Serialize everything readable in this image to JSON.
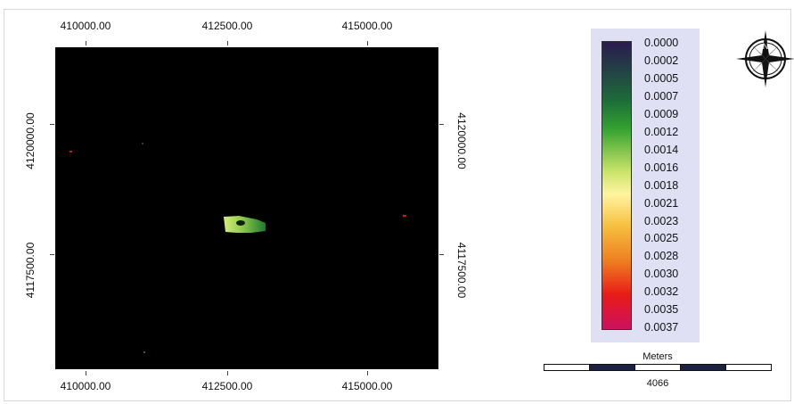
{
  "map": {
    "x_ticks_top": [
      "410000.00",
      "412500.00",
      "415000.00"
    ],
    "x_ticks_bottom": [
      "410000.00",
      "412500.00",
      "415000.00"
    ],
    "y_ticks_left": [
      "4120000.00",
      "4117500.00"
    ],
    "y_ticks_right": [
      "4120000.00",
      "4117500.00"
    ],
    "background_color": "#000000"
  },
  "legend": {
    "values": [
      "0.0000",
      "0.0002",
      "0.0005",
      "0.0007",
      "0.0009",
      "0.0012",
      "0.0014",
      "0.0016",
      "0.0018",
      "0.0021",
      "0.0023",
      "0.0025",
      "0.0028",
      "0.0030",
      "0.0032",
      "0.0035",
      "0.0037"
    ],
    "panel_color": "#dfe0f4"
  },
  "scalebar": {
    "title": "Meters",
    "value": "4066"
  },
  "north_arrow": {
    "label": "N",
    "icon": "compass-rose-icon"
  }
}
